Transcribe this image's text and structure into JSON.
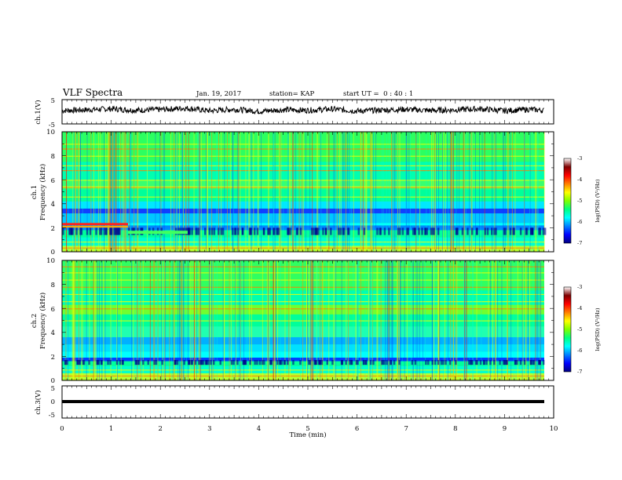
{
  "header": {
    "title": "VLF Spectra",
    "date": "Jan. 19, 2017",
    "station": "station= KAP",
    "start_ut": "start UT =  0 : 40 : 1"
  },
  "colorbar": {
    "label": "log(PSD) (V²/Hz)",
    "ticks": [
      "-3",
      "-4",
      "-5",
      "-6",
      "-7"
    ],
    "values": [
      -3,
      -4,
      -5,
      -6,
      -7
    ],
    "range": [
      -7,
      -3
    ],
    "colors": [
      "#00007f",
      "#0000ff",
      "#007fff",
      "#00ffff",
      "#00ff7f",
      "#7fff00",
      "#ffff00",
      "#ff7f00",
      "#ff0000",
      "#7f0000",
      "#ffffff"
    ]
  },
  "chart_data": [
    {
      "type": "line",
      "panel": "ch1-waveform",
      "ylabel": "ch.1(V)",
      "ylim": [
        -5,
        5
      ],
      "yticks": [
        "5",
        "-5"
      ],
      "xlim": [
        0,
        10
      ],
      "x": [
        0,
        0.5,
        1,
        1.5,
        2,
        2.5,
        3,
        3.5,
        4,
        4.5,
        5,
        5.5,
        6,
        6.5,
        7,
        7.5,
        8,
        8.5,
        9,
        9.5,
        9.8
      ],
      "y": [
        0.5,
        0.8,
        1.2,
        0.6,
        0.9,
        1.5,
        0.4,
        1.0,
        0.2,
        0.8,
        0.6,
        1.1,
        0.3,
        0.7,
        1.0,
        0.5,
        0.8,
        1.2,
        0.4,
        1.0,
        0.6
      ]
    },
    {
      "type": "heatmap",
      "panel": "ch1-spectrogram",
      "ylabel_top": "ch.1",
      "ylabel": "Frequency (kHz)",
      "ylim": [
        0,
        10
      ],
      "yticks": [
        "0",
        "2",
        "4",
        "6",
        "8",
        "10"
      ],
      "xlim": [
        0,
        10
      ],
      "zlim": [
        -7,
        -3
      ]
    },
    {
      "type": "heatmap",
      "panel": "ch2-spectrogram",
      "ylabel_top": "ch.2",
      "ylabel": "Frequency (kHz)",
      "ylim": [
        0,
        10
      ],
      "yticks": [
        "0",
        "2",
        "4",
        "6",
        "8",
        "10"
      ],
      "xlim": [
        0,
        10
      ],
      "zlim": [
        -7,
        -3
      ]
    },
    {
      "type": "line",
      "panel": "ch3-waveform",
      "ylabel": "ch.3(V)",
      "ylim": [
        -5,
        5
      ],
      "yticks": [
        "5",
        "0",
        "-5"
      ],
      "xlim": [
        0,
        10
      ],
      "x": [
        0,
        9.8
      ],
      "y": [
        0,
        0
      ]
    }
  ],
  "xaxis": {
    "label": "Time (min)",
    "ticks": [
      "0",
      "1",
      "2",
      "3",
      "4",
      "5",
      "6",
      "7",
      "8",
      "9",
      "10"
    ],
    "values": [
      0,
      1,
      2,
      3,
      4,
      5,
      6,
      7,
      8,
      9,
      10
    ]
  }
}
